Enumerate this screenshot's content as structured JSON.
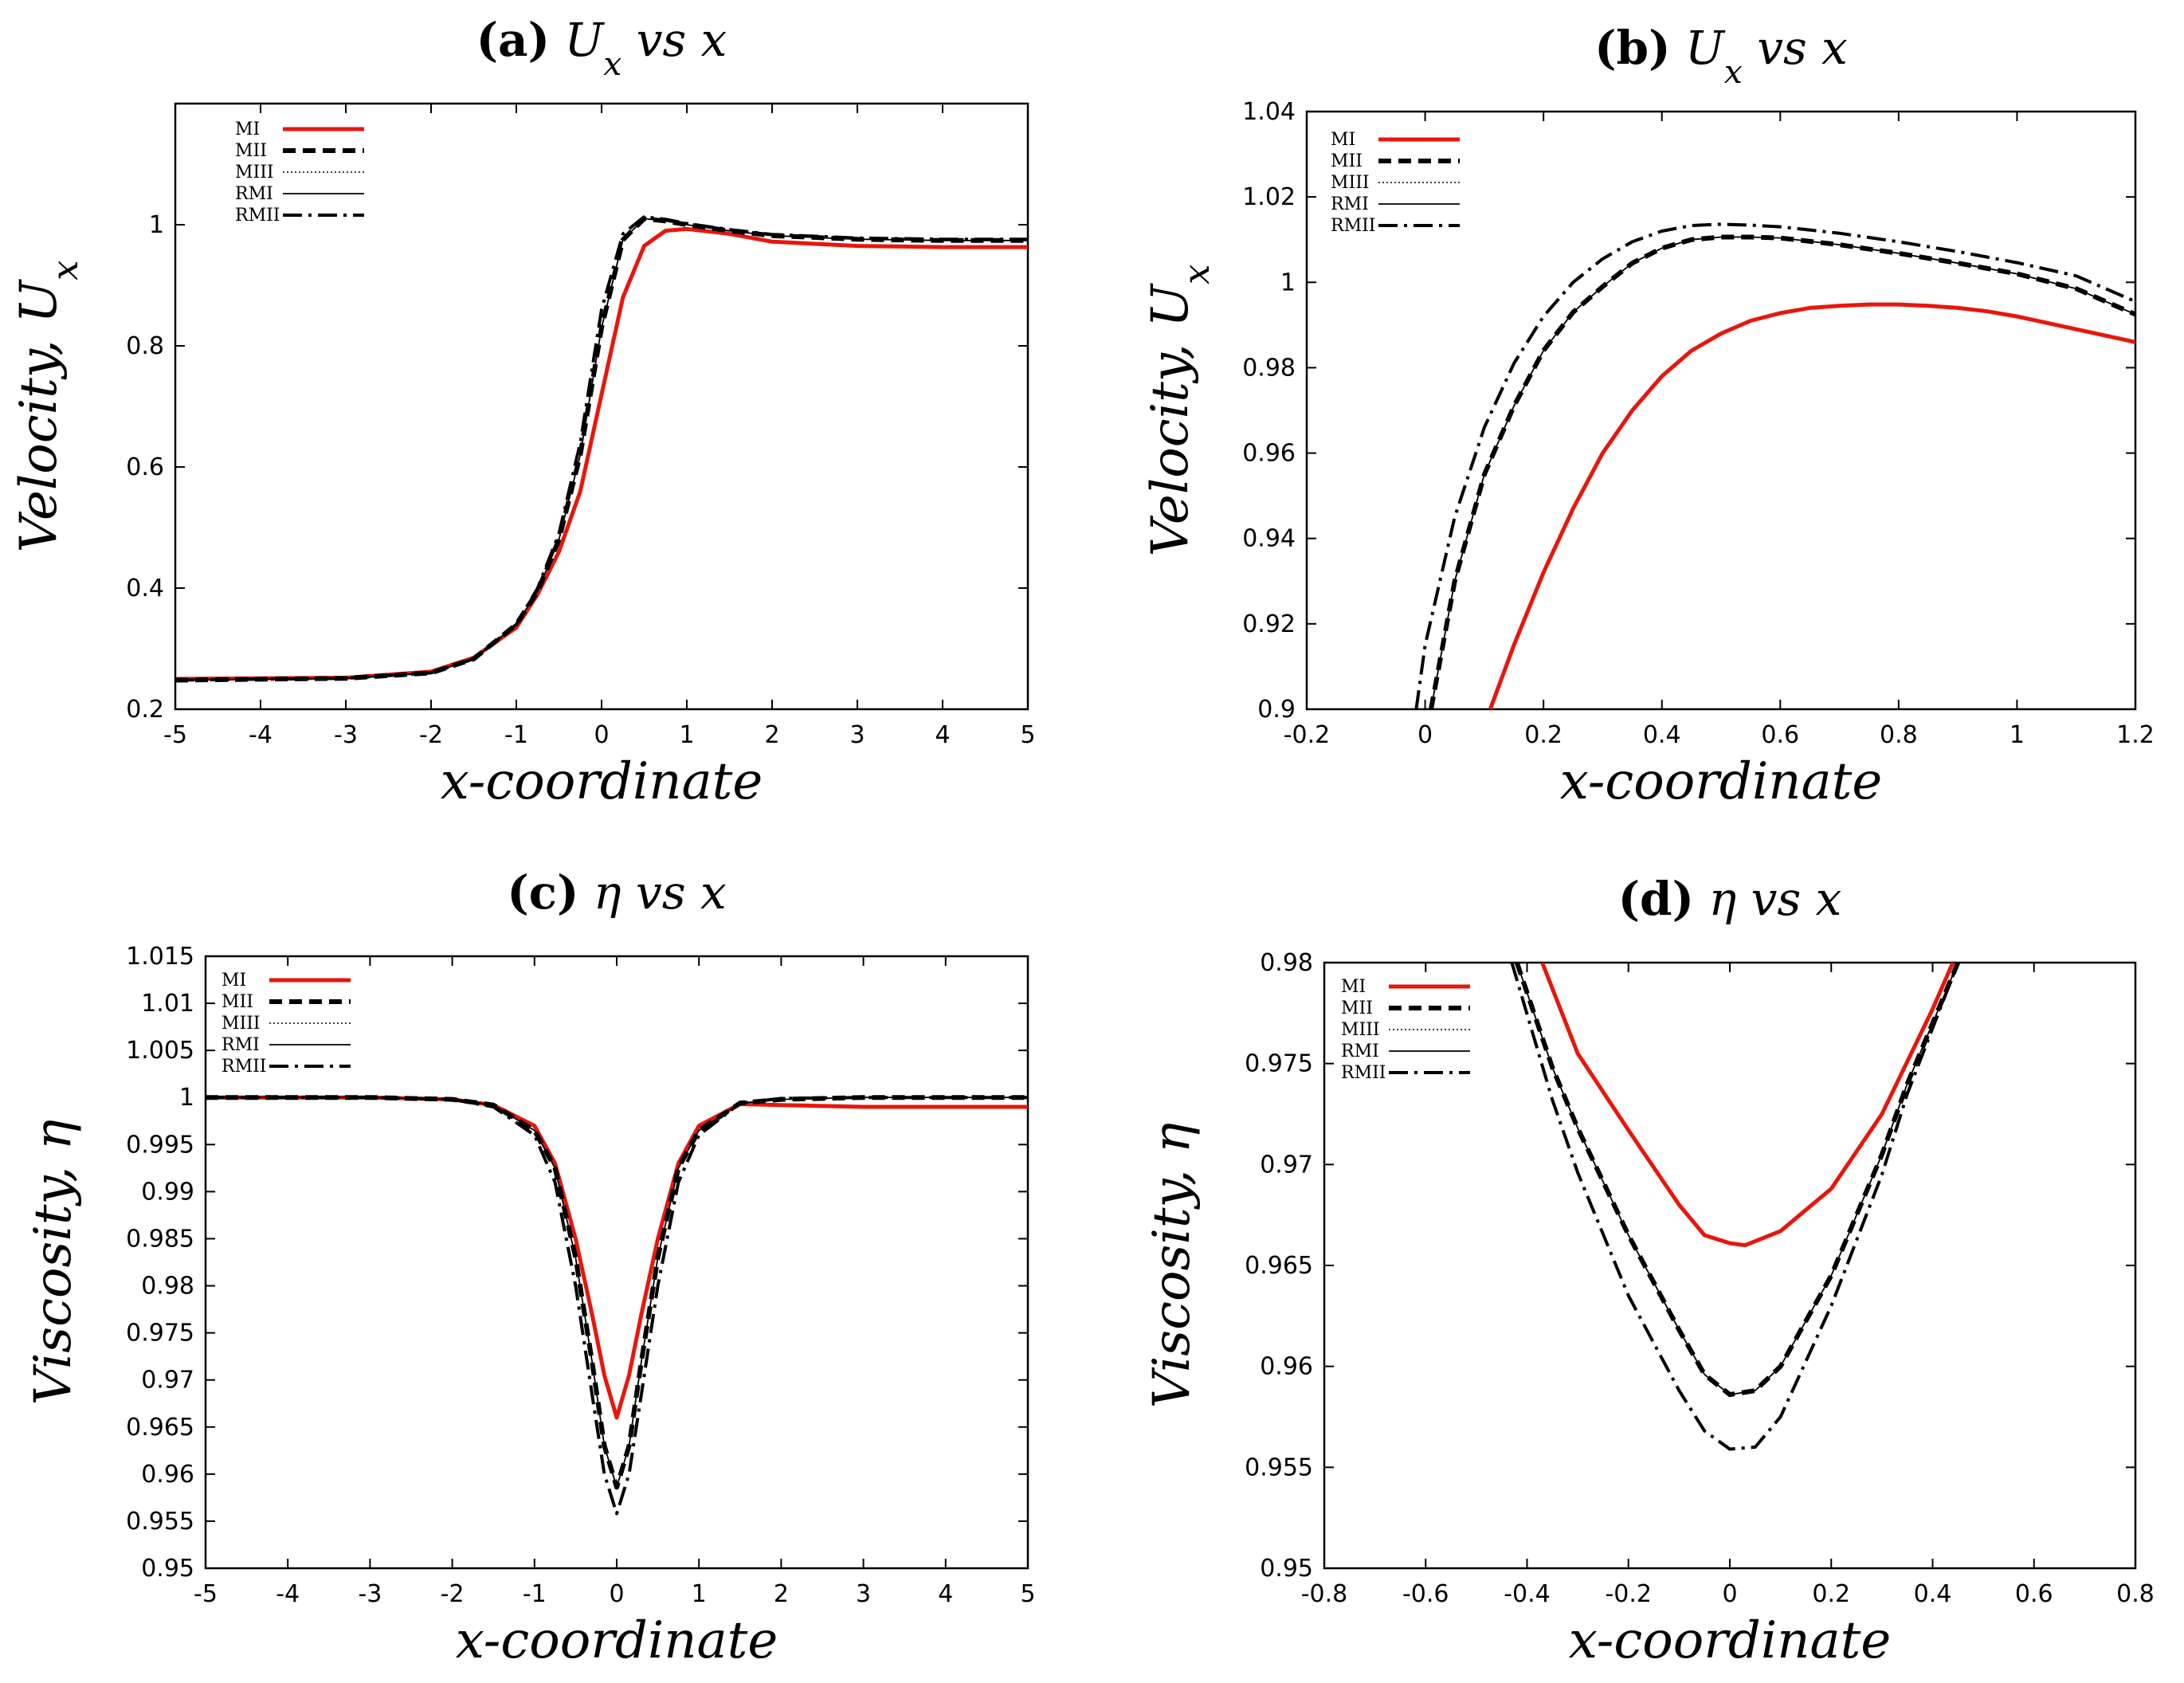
{
  "chart_data": [
    {
      "id": "a",
      "type": "line",
      "title_letter": "(a)",
      "title_rest": " U_x vs x",
      "xlabel": "x-coordinate",
      "ylabel": "Velocity, U_x",
      "xlim": [
        -5,
        5
      ],
      "ylim": [
        0.2,
        1.2
      ],
      "xticks": [
        -5,
        -4,
        -3,
        -2,
        -1,
        0,
        1,
        2,
        3,
        4,
        5
      ],
      "xtick_labels": [
        "-5",
        "-4",
        "-3",
        "-2",
        "-1",
        "0",
        "1",
        "2",
        "3",
        "4",
        "5"
      ],
      "yticks": [
        0.2,
        0.4,
        0.6,
        0.8,
        1.0
      ],
      "ytick_labels": [
        "0.2",
        "0.4",
        "0.6",
        "0.8",
        "1"
      ],
      "legend_position": "top-left",
      "series": [
        {
          "name": "MI",
          "style": "thick-red",
          "x": [
            -5,
            -3,
            -2,
            -1.5,
            -1,
            -0.75,
            -0.5,
            -0.25,
            0,
            0.25,
            0.5,
            0.75,
            1,
            1.5,
            2,
            3,
            4,
            5
          ],
          "y": [
            0.25,
            0.252,
            0.262,
            0.285,
            0.335,
            0.39,
            0.46,
            0.56,
            0.72,
            0.88,
            0.965,
            0.99,
            0.993,
            0.985,
            0.972,
            0.965,
            0.963,
            0.963
          ]
        },
        {
          "name": "MII",
          "style": "dashed-thick",
          "x": [
            -5,
            -3,
            -2,
            -1.5,
            -1,
            -0.75,
            -0.5,
            -0.25,
            0,
            0.25,
            0.5,
            0.75,
            1,
            1.5,
            2,
            3,
            4,
            5
          ],
          "y": [
            0.248,
            0.251,
            0.26,
            0.283,
            0.34,
            0.395,
            0.48,
            0.62,
            0.83,
            0.975,
            1.01,
            1.006,
            1.0,
            0.99,
            0.982,
            0.976,
            0.974,
            0.974
          ]
        },
        {
          "name": "MIII",
          "style": "dotted-thin",
          "x": [
            -5,
            -3,
            -2,
            -1.5,
            -1,
            -0.75,
            -0.5,
            -0.25,
            0,
            0.25,
            0.5,
            0.75,
            1,
            1.5,
            2,
            3,
            4,
            5
          ],
          "y": [
            0.248,
            0.251,
            0.26,
            0.283,
            0.34,
            0.395,
            0.48,
            0.62,
            0.83,
            0.975,
            1.01,
            1.006,
            1.0,
            0.99,
            0.982,
            0.976,
            0.974,
            0.974
          ]
        },
        {
          "name": "RMI",
          "style": "solid-thin",
          "x": [
            -5,
            -3,
            -2,
            -1.5,
            -1,
            -0.75,
            -0.5,
            -0.25,
            0,
            0.25,
            0.5,
            0.75,
            1,
            1.5,
            2,
            3,
            4,
            5
          ],
          "y": [
            0.248,
            0.251,
            0.26,
            0.283,
            0.34,
            0.395,
            0.48,
            0.62,
            0.83,
            0.975,
            1.01,
            1.006,
            1.0,
            0.99,
            0.982,
            0.976,
            0.974,
            0.974
          ]
        },
        {
          "name": "RMII",
          "style": "dash-dot",
          "x": [
            -5,
            -3,
            -2,
            -1.5,
            -1,
            -0.75,
            -0.5,
            -0.25,
            0,
            0.25,
            0.5,
            0.75,
            1,
            1.5,
            2,
            3,
            4,
            5
          ],
          "y": [
            0.248,
            0.251,
            0.26,
            0.283,
            0.34,
            0.4,
            0.49,
            0.64,
            0.86,
            0.985,
            1.013,
            1.009,
            1.002,
            0.992,
            0.984,
            0.978,
            0.976,
            0.976
          ]
        }
      ]
    },
    {
      "id": "b",
      "type": "line",
      "title_letter": "(b)",
      "title_rest": " U_x vs x",
      "xlabel": "x-coordinate",
      "ylabel": "Velocity, U_x",
      "xlim": [
        -0.2,
        1.2
      ],
      "ylim": [
        0.9,
        1.04
      ],
      "xticks": [
        -0.2,
        0,
        0.2,
        0.4,
        0.6,
        0.8,
        1.0,
        1.2
      ],
      "xtick_labels": [
        "-0.2",
        "0",
        "0.2",
        "0.4",
        "0.6",
        "0.8",
        "1",
        "1.2"
      ],
      "yticks": [
        0.9,
        0.92,
        0.94,
        0.96,
        0.98,
        1.0,
        1.02,
        1.04
      ],
      "ytick_labels": [
        "0.9",
        "0.92",
        "0.94",
        "0.96",
        "0.98",
        "1",
        "1.02",
        "1.04"
      ],
      "legend_position": "top-left",
      "series": [
        {
          "name": "MI",
          "style": "thick-red",
          "x": [
            0.11,
            0.15,
            0.2,
            0.25,
            0.3,
            0.35,
            0.4,
            0.45,
            0.5,
            0.55,
            0.6,
            0.65,
            0.7,
            0.75,
            0.8,
            0.85,
            0.9,
            0.95,
            1.0,
            1.1,
            1.2
          ],
          "y": [
            0.9,
            0.915,
            0.932,
            0.947,
            0.96,
            0.97,
            0.978,
            0.984,
            0.988,
            0.991,
            0.9928,
            0.994,
            0.9945,
            0.9948,
            0.9948,
            0.9945,
            0.994,
            0.9932,
            0.992,
            0.989,
            0.986
          ]
        },
        {
          "name": "MII",
          "style": "dashed-thick",
          "x": [
            0.01,
            0.05,
            0.1,
            0.15,
            0.2,
            0.25,
            0.3,
            0.35,
            0.4,
            0.45,
            0.5,
            0.55,
            0.6,
            0.7,
            0.8,
            0.9,
            1.0,
            1.1,
            1.2
          ],
          "y": [
            0.9,
            0.93,
            0.955,
            0.971,
            0.984,
            0.993,
            0.999,
            1.0045,
            1.008,
            1.01,
            1.0106,
            1.0106,
            1.0104,
            1.0088,
            1.0068,
            1.0045,
            1.002,
            0.9985,
            0.9925
          ]
        },
        {
          "name": "MIII",
          "style": "dotted-thin",
          "x": [
            0.01,
            0.05,
            0.1,
            0.15,
            0.2,
            0.25,
            0.3,
            0.35,
            0.4,
            0.45,
            0.5,
            0.55,
            0.6,
            0.7,
            0.8,
            0.9,
            1.0,
            1.1,
            1.2
          ],
          "y": [
            0.9,
            0.93,
            0.955,
            0.971,
            0.984,
            0.993,
            0.999,
            1.0045,
            1.008,
            1.01,
            1.0106,
            1.0106,
            1.0104,
            1.0088,
            1.0068,
            1.0045,
            1.002,
            0.9985,
            0.9925
          ]
        },
        {
          "name": "RMI",
          "style": "solid-thin",
          "x": [
            0.01,
            0.05,
            0.1,
            0.15,
            0.2,
            0.25,
            0.3,
            0.35,
            0.4,
            0.45,
            0.5,
            0.55,
            0.6,
            0.7,
            0.8,
            0.9,
            1.0,
            1.1,
            1.2
          ],
          "y": [
            0.9,
            0.93,
            0.955,
            0.971,
            0.984,
            0.993,
            0.999,
            1.0045,
            1.008,
            1.01,
            1.0106,
            1.0106,
            1.0104,
            1.0088,
            1.0068,
            1.0045,
            1.002,
            0.9985,
            0.9925
          ]
        },
        {
          "name": "RMII",
          "style": "dash-dot",
          "x": [
            -0.015,
            0.0,
            0.05,
            0.1,
            0.15,
            0.2,
            0.25,
            0.3,
            0.35,
            0.4,
            0.45,
            0.5,
            0.55,
            0.6,
            0.7,
            0.8,
            0.9,
            1.0,
            1.1,
            1.2
          ],
          "y": [
            0.9,
            0.915,
            0.945,
            0.966,
            0.981,
            0.992,
            1.0,
            1.0055,
            1.0095,
            1.012,
            1.0133,
            1.0136,
            1.0134,
            1.013,
            1.0115,
            1.0095,
            1.0072,
            1.0046,
            1.0015,
            0.9955
          ]
        }
      ]
    },
    {
      "id": "c",
      "type": "line",
      "title_letter": "(c)",
      "title_rest": " η vs x",
      "xlabel": "x-coordinate",
      "ylabel": "Viscosity, η",
      "xlim": [
        -5,
        5
      ],
      "ylim": [
        0.95,
        1.015
      ],
      "xticks": [
        -5,
        -4,
        -3,
        -2,
        -1,
        0,
        1,
        2,
        3,
        4,
        5
      ],
      "xtick_labels": [
        "-5",
        "-4",
        "-3",
        "-2",
        "-1",
        "0",
        "1",
        "2",
        "3",
        "4",
        "5"
      ],
      "yticks": [
        0.95,
        0.955,
        0.96,
        0.965,
        0.97,
        0.975,
        0.98,
        0.985,
        0.99,
        0.995,
        1.0,
        1.005,
        1.01,
        1.015
      ],
      "ytick_labels": [
        "0.95",
        "0.955",
        "0.96",
        "0.965",
        "0.97",
        "0.975",
        "0.98",
        "0.985",
        "0.99",
        "0.995",
        "1",
        "1.005",
        "1.01",
        "1.015"
      ],
      "legend_position": "top-left",
      "series": [
        {
          "name": "MI",
          "style": "thick-red",
          "x": [
            -5,
            -3,
            -2,
            -1.5,
            -1,
            -0.75,
            -0.5,
            -0.3,
            -0.15,
            0,
            0.15,
            0.3,
            0.5,
            0.75,
            1,
            1.5,
            2,
            3,
            4,
            5
          ],
          "y": [
            1.0,
            1.0,
            0.9998,
            0.9992,
            0.997,
            0.993,
            0.985,
            0.977,
            0.9705,
            0.966,
            0.9705,
            0.977,
            0.985,
            0.993,
            0.997,
            0.9993,
            0.9992,
            0.999,
            0.999,
            0.999
          ]
        },
        {
          "name": "MII",
          "style": "dashed-thick",
          "x": [
            -5,
            -3,
            -2,
            -1.5,
            -1,
            -0.75,
            -0.5,
            -0.3,
            -0.15,
            0,
            0.15,
            0.3,
            0.5,
            0.75,
            1,
            1.5,
            2,
            3,
            4,
            5
          ],
          "y": [
            1.0,
            1.0,
            0.9998,
            0.9992,
            0.9965,
            0.9925,
            0.983,
            0.972,
            0.963,
            0.9586,
            0.963,
            0.972,
            0.983,
            0.9925,
            0.9965,
            0.9994,
            0.9998,
            1.0,
            1.0,
            1.0
          ]
        },
        {
          "name": "MIII",
          "style": "dotted-thin",
          "x": [
            -5,
            -3,
            -2,
            -1.5,
            -1,
            -0.75,
            -0.5,
            -0.3,
            -0.15,
            0,
            0.15,
            0.3,
            0.5,
            0.75,
            1,
            1.5,
            2,
            3,
            4,
            5
          ],
          "y": [
            1.0,
            1.0,
            0.9998,
            0.9992,
            0.9965,
            0.9925,
            0.983,
            0.972,
            0.963,
            0.9586,
            0.963,
            0.972,
            0.983,
            0.9925,
            0.9965,
            0.9994,
            0.9998,
            1.0,
            1.0,
            1.0
          ]
        },
        {
          "name": "RMI",
          "style": "solid-thin",
          "x": [
            -5,
            -3,
            -2,
            -1.5,
            -1,
            -0.75,
            -0.5,
            -0.3,
            -0.15,
            0,
            0.15,
            0.3,
            0.5,
            0.75,
            1,
            1.5,
            2,
            3,
            4,
            5
          ],
          "y": [
            1.0,
            1.0,
            0.9998,
            0.9992,
            0.9965,
            0.9925,
            0.983,
            0.972,
            0.963,
            0.9586,
            0.963,
            0.972,
            0.983,
            0.9925,
            0.9965,
            0.9994,
            0.9998,
            1.0,
            1.0,
            1.0
          ]
        },
        {
          "name": "RMII",
          "style": "dash-dot",
          "x": [
            -5,
            -3,
            -2,
            -1.5,
            -1,
            -0.75,
            -0.5,
            -0.3,
            -0.15,
            0,
            0.15,
            0.3,
            0.5,
            0.75,
            1,
            1.5,
            2,
            3,
            4,
            5
          ],
          "y": [
            1.0,
            1.0,
            0.9998,
            0.999,
            0.996,
            0.991,
            0.98,
            0.9685,
            0.96,
            0.9558,
            0.96,
            0.9685,
            0.98,
            0.991,
            0.996,
            0.9994,
            0.9999,
            1.0,
            1.0,
            1.0
          ]
        }
      ]
    },
    {
      "id": "d",
      "type": "line",
      "title_letter": "(d)",
      "title_rest": " η vs x",
      "xlabel": "x-coordinate",
      "ylabel": "Viscosity, η",
      "xlim": [
        -0.8,
        0.8
      ],
      "ylim": [
        0.95,
        0.98
      ],
      "xticks": [
        -0.8,
        -0.6,
        -0.4,
        -0.2,
        0,
        0.2,
        0.4,
        0.6,
        0.8
      ],
      "xtick_labels": [
        "-0.8",
        "-0.6",
        "-0.4",
        "-0.2",
        "0",
        "0.2",
        "0.4",
        "0.6",
        "0.8"
      ],
      "yticks": [
        0.95,
        0.955,
        0.96,
        0.965,
        0.97,
        0.975,
        0.98
      ],
      "ytick_labels": [
        "0.95",
        "0.955",
        "0.96",
        "0.965",
        "0.97",
        "0.975",
        "0.98"
      ],
      "legend_position": "top-left",
      "series": [
        {
          "name": "MI",
          "style": "thick-red",
          "x": [
            -0.37,
            -0.3,
            -0.2,
            -0.1,
            -0.05,
            0,
            0.03,
            0.1,
            0.2,
            0.3,
            0.4,
            0.44
          ],
          "y": [
            0.98,
            0.9755,
            0.9717,
            0.968,
            0.9665,
            0.9661,
            0.966,
            0.9667,
            0.9688,
            0.9725,
            0.9777,
            0.98
          ]
        },
        {
          "name": "MII",
          "style": "dashed-thick",
          "x": [
            -0.42,
            -0.35,
            -0.3,
            -0.2,
            -0.1,
            -0.05,
            0,
            0.05,
            0.1,
            0.2,
            0.3,
            0.35,
            0.45
          ],
          "y": [
            0.98,
            0.9748,
            0.9718,
            0.9665,
            0.9618,
            0.9596,
            0.9586,
            0.9588,
            0.96,
            0.9645,
            0.9705,
            0.974,
            0.98
          ]
        },
        {
          "name": "MIII",
          "style": "dotted-thin",
          "x": [
            -0.42,
            -0.35,
            -0.3,
            -0.2,
            -0.1,
            -0.05,
            0,
            0.05,
            0.1,
            0.2,
            0.3,
            0.35,
            0.45
          ],
          "y": [
            0.98,
            0.9748,
            0.9718,
            0.9665,
            0.9618,
            0.9596,
            0.9586,
            0.9588,
            0.96,
            0.9645,
            0.9705,
            0.974,
            0.98
          ]
        },
        {
          "name": "RMI",
          "style": "solid-thin",
          "x": [
            -0.42,
            -0.35,
            -0.3,
            -0.2,
            -0.1,
            -0.05,
            0,
            0.05,
            0.1,
            0.2,
            0.3,
            0.35,
            0.45
          ],
          "y": [
            0.98,
            0.9748,
            0.9718,
            0.9665,
            0.9618,
            0.9596,
            0.9586,
            0.9588,
            0.96,
            0.9645,
            0.9705,
            0.974,
            0.98
          ]
        },
        {
          "name": "RMII",
          "style": "dash-dot",
          "x": [
            -0.43,
            -0.35,
            -0.3,
            -0.2,
            -0.1,
            -0.05,
            0,
            0.05,
            0.1,
            0.2,
            0.3,
            0.35,
            0.45
          ],
          "y": [
            0.98,
            0.9732,
            0.9696,
            0.9635,
            0.9588,
            0.9568,
            0.9559,
            0.956,
            0.9575,
            0.963,
            0.9695,
            0.9735,
            0.98
          ]
        }
      ]
    }
  ]
}
